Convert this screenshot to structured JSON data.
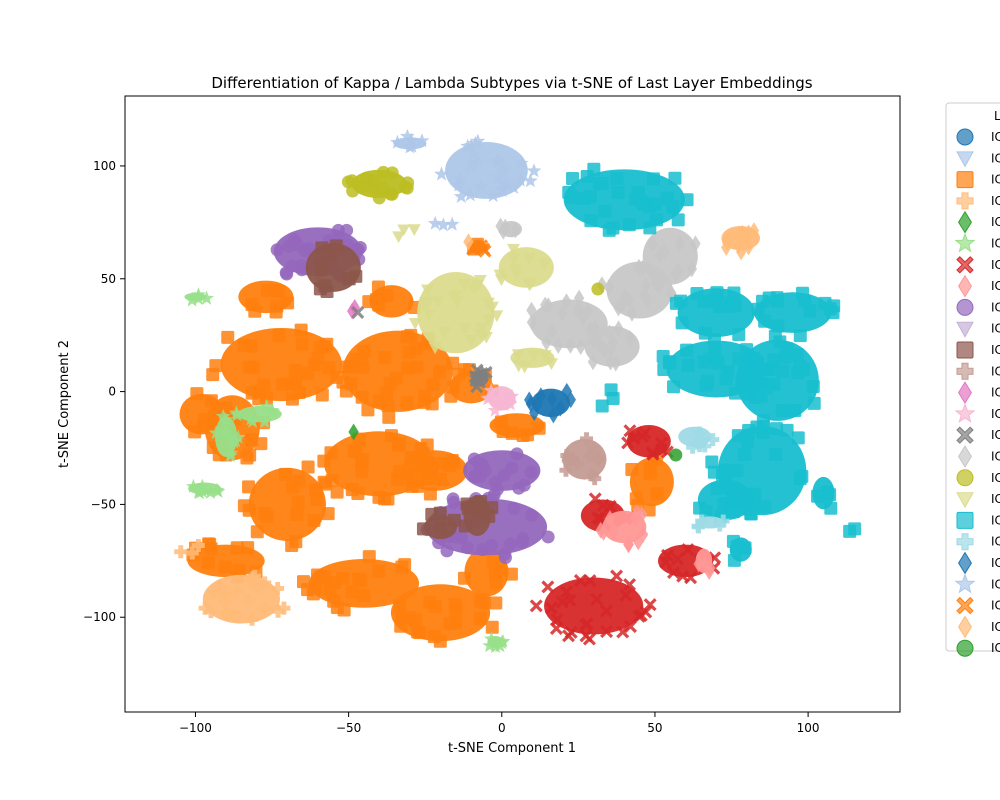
{
  "chart_data": {
    "type": "scatter",
    "title": "Differentiation of Kappa / Lambda Subtypes via t-SNE of Last Layer Embeddings",
    "xlabel": "t-SNE Component 1",
    "ylabel": "t-SNE Component 2",
    "xlim": [
      -123,
      130
    ],
    "ylim": [
      -142,
      131
    ],
    "x_ticks": [
      -100,
      -50,
      0,
      50,
      100
    ],
    "y_ticks": [
      -100,
      -50,
      0,
      50,
      100
    ],
    "grid": false,
    "legend_position": "right, partially cut off",
    "legend_title": "L",
    "series": [
      {
        "label": "IC",
        "color": "#1f77b4",
        "marker": "circle",
        "clusters": []
      },
      {
        "label": "IC",
        "color": "#aec7e8",
        "marker": "triangle-down",
        "clusters": []
      },
      {
        "label": "IC",
        "color": "#ff7f0e",
        "marker": "square",
        "clusters": [
          {
            "cx": -72,
            "cy": 12,
            "rx": 22,
            "ry": 18,
            "n": 30
          },
          {
            "cx": -34,
            "cy": 9,
            "rx": 20,
            "ry": 20,
            "n": 35
          },
          {
            "cx": -40,
            "cy": -32,
            "rx": 20,
            "ry": 16,
            "n": 30
          },
          {
            "cx": -88,
            "cy": -16,
            "rx": 10,
            "ry": 16,
            "n": 12
          },
          {
            "cx": -90,
            "cy": -75,
            "rx": 14,
            "ry": 8,
            "n": 12
          },
          {
            "cx": -70,
            "cy": -50,
            "rx": 14,
            "ry": 18,
            "n": 18
          },
          {
            "cx": -45,
            "cy": -85,
            "rx": 20,
            "ry": 12,
            "n": 22
          },
          {
            "cx": -20,
            "cy": -98,
            "rx": 18,
            "ry": 14,
            "n": 20
          },
          {
            "cx": -22,
            "cy": -35,
            "rx": 12,
            "ry": 10,
            "n": 12
          },
          {
            "cx": -10,
            "cy": 2,
            "rx": 8,
            "ry": 8,
            "n": 6
          },
          {
            "cx": -77,
            "cy": 42,
            "rx": 10,
            "ry": 8,
            "n": 8
          },
          {
            "cx": -36,
            "cy": 40,
            "rx": 8,
            "ry": 8,
            "n": 6
          },
          {
            "cx": -98,
            "cy": -10,
            "rx": 8,
            "ry": 10,
            "n": 6
          },
          {
            "cx": 49,
            "cy": -40,
            "rx": 8,
            "ry": 12,
            "n": 8
          },
          {
            "cx": 5,
            "cy": -15,
            "rx": 10,
            "ry": 6,
            "n": 6
          },
          {
            "cx": -5,
            "cy": -80,
            "rx": 8,
            "ry": 12,
            "n": 6
          },
          {
            "cx": -8,
            "cy": 65,
            "rx": 3,
            "ry": 3,
            "n": 3
          }
        ]
      },
      {
        "label": "IC",
        "color": "#ffbb78",
        "marker": "plus",
        "clusters": [
          {
            "cx": -85,
            "cy": -92,
            "rx": 14,
            "ry": 12,
            "n": 22
          },
          {
            "cx": -102,
            "cy": -68,
            "rx": 4,
            "ry": 4,
            "n": 3
          }
        ]
      },
      {
        "label": "IC",
        "color": "#2ca02c",
        "marker": "diamond",
        "clusters": [
          {
            "cx": -48,
            "cy": -18,
            "rx": 1,
            "ry": 1,
            "n": 1
          }
        ]
      },
      {
        "label": "IC",
        "color": "#98df8a",
        "marker": "star",
        "clusters": [
          {
            "cx": -90,
            "cy": -20,
            "rx": 4,
            "ry": 10,
            "n": 10
          },
          {
            "cx": -97,
            "cy": -43,
            "rx": 6,
            "ry": 3,
            "n": 8
          },
          {
            "cx": -79,
            "cy": -10,
            "rx": 8,
            "ry": 4,
            "n": 8
          },
          {
            "cx": -100,
            "cy": 42,
            "rx": 4,
            "ry": 2,
            "n": 4
          },
          {
            "cx": -2,
            "cy": -111,
            "rx": 3,
            "ry": 3,
            "n": 6
          }
        ]
      },
      {
        "label": "IC",
        "color": "#d62728",
        "marker": "x",
        "clusters": [
          {
            "cx": 30,
            "cy": -95,
            "rx": 18,
            "ry": 14,
            "n": 28
          },
          {
            "cx": 48,
            "cy": -22,
            "rx": 8,
            "ry": 8,
            "n": 10
          },
          {
            "cx": 60,
            "cy": -75,
            "rx": 10,
            "ry": 8,
            "n": 12
          },
          {
            "cx": 33,
            "cy": -55,
            "rx": 8,
            "ry": 8,
            "n": 8
          }
        ]
      },
      {
        "label": "IC",
        "color": "#ff9896",
        "marker": "diamond",
        "clusters": [
          {
            "cx": 40,
            "cy": -60,
            "rx": 8,
            "ry": 8,
            "n": 12
          },
          {
            "cx": 66,
            "cy": -75,
            "rx": 3,
            "ry": 6,
            "n": 4
          }
        ]
      },
      {
        "label": "IC",
        "color": "#9467bd",
        "marker": "circle",
        "clusters": [
          {
            "cx": -60,
            "cy": 62,
            "rx": 16,
            "ry": 12,
            "n": 28
          },
          {
            "cx": 0,
            "cy": -35,
            "rx": 14,
            "ry": 10,
            "n": 16
          },
          {
            "cx": -5,
            "cy": -60,
            "rx": 22,
            "ry": 14,
            "n": 30
          }
        ]
      },
      {
        "label": "IC",
        "color": "#c5b0d5",
        "marker": "triangle-down",
        "clusters": [
          {
            "cx": -60,
            "cy": 50,
            "rx": 1,
            "ry": 1,
            "n": 1
          }
        ]
      },
      {
        "label": "IC",
        "color": "#8c564b",
        "marker": "square",
        "clusters": [
          {
            "cx": -55,
            "cy": 55,
            "rx": 10,
            "ry": 12,
            "n": 10
          },
          {
            "cx": -8,
            "cy": -55,
            "rx": 5,
            "ry": 10,
            "n": 8
          },
          {
            "cx": -20,
            "cy": -60,
            "rx": 6,
            "ry": 6,
            "n": 5
          }
        ]
      },
      {
        "label": "IC",
        "color": "#c49c94",
        "marker": "plus",
        "clusters": [
          {
            "cx": 27,
            "cy": -30,
            "rx": 8,
            "ry": 10,
            "n": 12
          }
        ]
      },
      {
        "label": "IC",
        "color": "#e377c2",
        "marker": "diamond",
        "clusters": [
          {
            "cx": -48,
            "cy": 36,
            "rx": 2,
            "ry": 2,
            "n": 2
          }
        ]
      },
      {
        "label": "IC",
        "color": "#f7b6d2",
        "marker": "star",
        "clusters": [
          {
            "cx": 0,
            "cy": -3,
            "rx": 5,
            "ry": 6,
            "n": 10
          }
        ]
      },
      {
        "label": "IC",
        "color": "#7f7f7f",
        "marker": "x",
        "clusters": [
          {
            "cx": -7,
            "cy": 6,
            "rx": 3,
            "ry": 4,
            "n": 8
          },
          {
            "cx": -46,
            "cy": 35,
            "rx": 1,
            "ry": 1,
            "n": 1
          }
        ]
      },
      {
        "label": "IC",
        "color": "#c7c7c7",
        "marker": "diamond",
        "clusters": [
          {
            "cx": 22,
            "cy": 30,
            "rx": 14,
            "ry": 12,
            "n": 18
          },
          {
            "cx": 45,
            "cy": 45,
            "rx": 12,
            "ry": 14,
            "n": 16
          },
          {
            "cx": 55,
            "cy": 60,
            "rx": 10,
            "ry": 14,
            "n": 14
          },
          {
            "cx": 36,
            "cy": 20,
            "rx": 10,
            "ry": 10,
            "n": 12
          },
          {
            "cx": 3,
            "cy": 72,
            "rx": 4,
            "ry": 4,
            "n": 4
          }
        ]
      },
      {
        "label": "IC",
        "color": "#bcbd22",
        "marker": "circle",
        "clusters": [
          {
            "cx": -40,
            "cy": 92,
            "rx": 10,
            "ry": 7,
            "n": 16
          },
          {
            "cx": 31,
            "cy": 45,
            "rx": 1,
            "ry": 1,
            "n": 1
          }
        ]
      },
      {
        "label": "IC",
        "color": "#dbdb8d",
        "marker": "triangle-down",
        "clusters": [
          {
            "cx": -15,
            "cy": 35,
            "rx": 14,
            "ry": 20,
            "n": 26
          },
          {
            "cx": 8,
            "cy": 55,
            "rx": 10,
            "ry": 10,
            "n": 10
          },
          {
            "cx": 10,
            "cy": 15,
            "rx": 8,
            "ry": 5,
            "n": 6
          },
          {
            "cx": -30,
            "cy": 69,
            "rx": 4,
            "ry": 3,
            "n": 3
          }
        ]
      },
      {
        "label": "IC",
        "color": "#17becf",
        "marker": "square",
        "clusters": [
          {
            "cx": 40,
            "cy": 85,
            "rx": 22,
            "ry": 15,
            "n": 30
          },
          {
            "cx": 70,
            "cy": 10,
            "rx": 18,
            "ry": 14,
            "n": 28
          },
          {
            "cx": 90,
            "cy": 5,
            "rx": 15,
            "ry": 20,
            "n": 24
          },
          {
            "cx": 70,
            "cy": 35,
            "rx": 14,
            "ry": 12,
            "n": 18
          },
          {
            "cx": 85,
            "cy": -35,
            "rx": 16,
            "ry": 22,
            "n": 28
          },
          {
            "cx": 95,
            "cy": 35,
            "rx": 14,
            "ry": 10,
            "n": 14
          },
          {
            "cx": 73,
            "cy": -48,
            "rx": 10,
            "ry": 10,
            "n": 10
          },
          {
            "cx": 105,
            "cy": -45,
            "rx": 4,
            "ry": 8,
            "n": 4
          },
          {
            "cx": 78,
            "cy": -70,
            "rx": 4,
            "ry": 6,
            "n": 4
          },
          {
            "cx": 35,
            "cy": -5,
            "rx": 4,
            "ry": 6,
            "n": 3
          },
          {
            "cx": 112,
            "cy": -62,
            "rx": 4,
            "ry": 4,
            "n": 2
          }
        ]
      },
      {
        "label": "IC",
        "color": "#9edae5",
        "marker": "plus",
        "clusters": [
          {
            "cx": 63,
            "cy": -20,
            "rx": 6,
            "ry": 5,
            "n": 6
          },
          {
            "cx": 68,
            "cy": -58,
            "rx": 5,
            "ry": 3,
            "n": 5
          }
        ]
      },
      {
        "label": "IC",
        "color": "#1f77b4",
        "marker": "diamond",
        "clusters": [
          {
            "cx": 16,
            "cy": -5,
            "rx": 7,
            "ry": 7,
            "n": 10
          }
        ]
      },
      {
        "label": "IC",
        "color": "#aec7e8",
        "marker": "star",
        "clusters": [
          {
            "cx": -5,
            "cy": 98,
            "rx": 15,
            "ry": 14,
            "n": 26
          },
          {
            "cx": -30,
            "cy": 110,
            "rx": 6,
            "ry": 3,
            "n": 6
          },
          {
            "cx": -20,
            "cy": 75,
            "rx": 4,
            "ry": 4,
            "n": 3
          }
        ]
      },
      {
        "label": "IC",
        "color": "#ff7f0e",
        "marker": "x",
        "clusters": [
          {
            "cx": -7,
            "cy": 64,
            "rx": 3,
            "ry": 2,
            "n": 4
          }
        ]
      },
      {
        "label": "IC",
        "color": "#ffbb78",
        "marker": "diamond",
        "clusters": [
          {
            "cx": 78,
            "cy": 68,
            "rx": 7,
            "ry": 6,
            "n": 12
          },
          {
            "cx": -10,
            "cy": 66,
            "rx": 1,
            "ry": 1,
            "n": 1
          }
        ]
      },
      {
        "label": "IC",
        "color": "#2ca02c",
        "marker": "circle",
        "clusters": [
          {
            "cx": 57,
            "cy": -28,
            "rx": 1,
            "ry": 1,
            "n": 1
          }
        ]
      }
    ]
  }
}
